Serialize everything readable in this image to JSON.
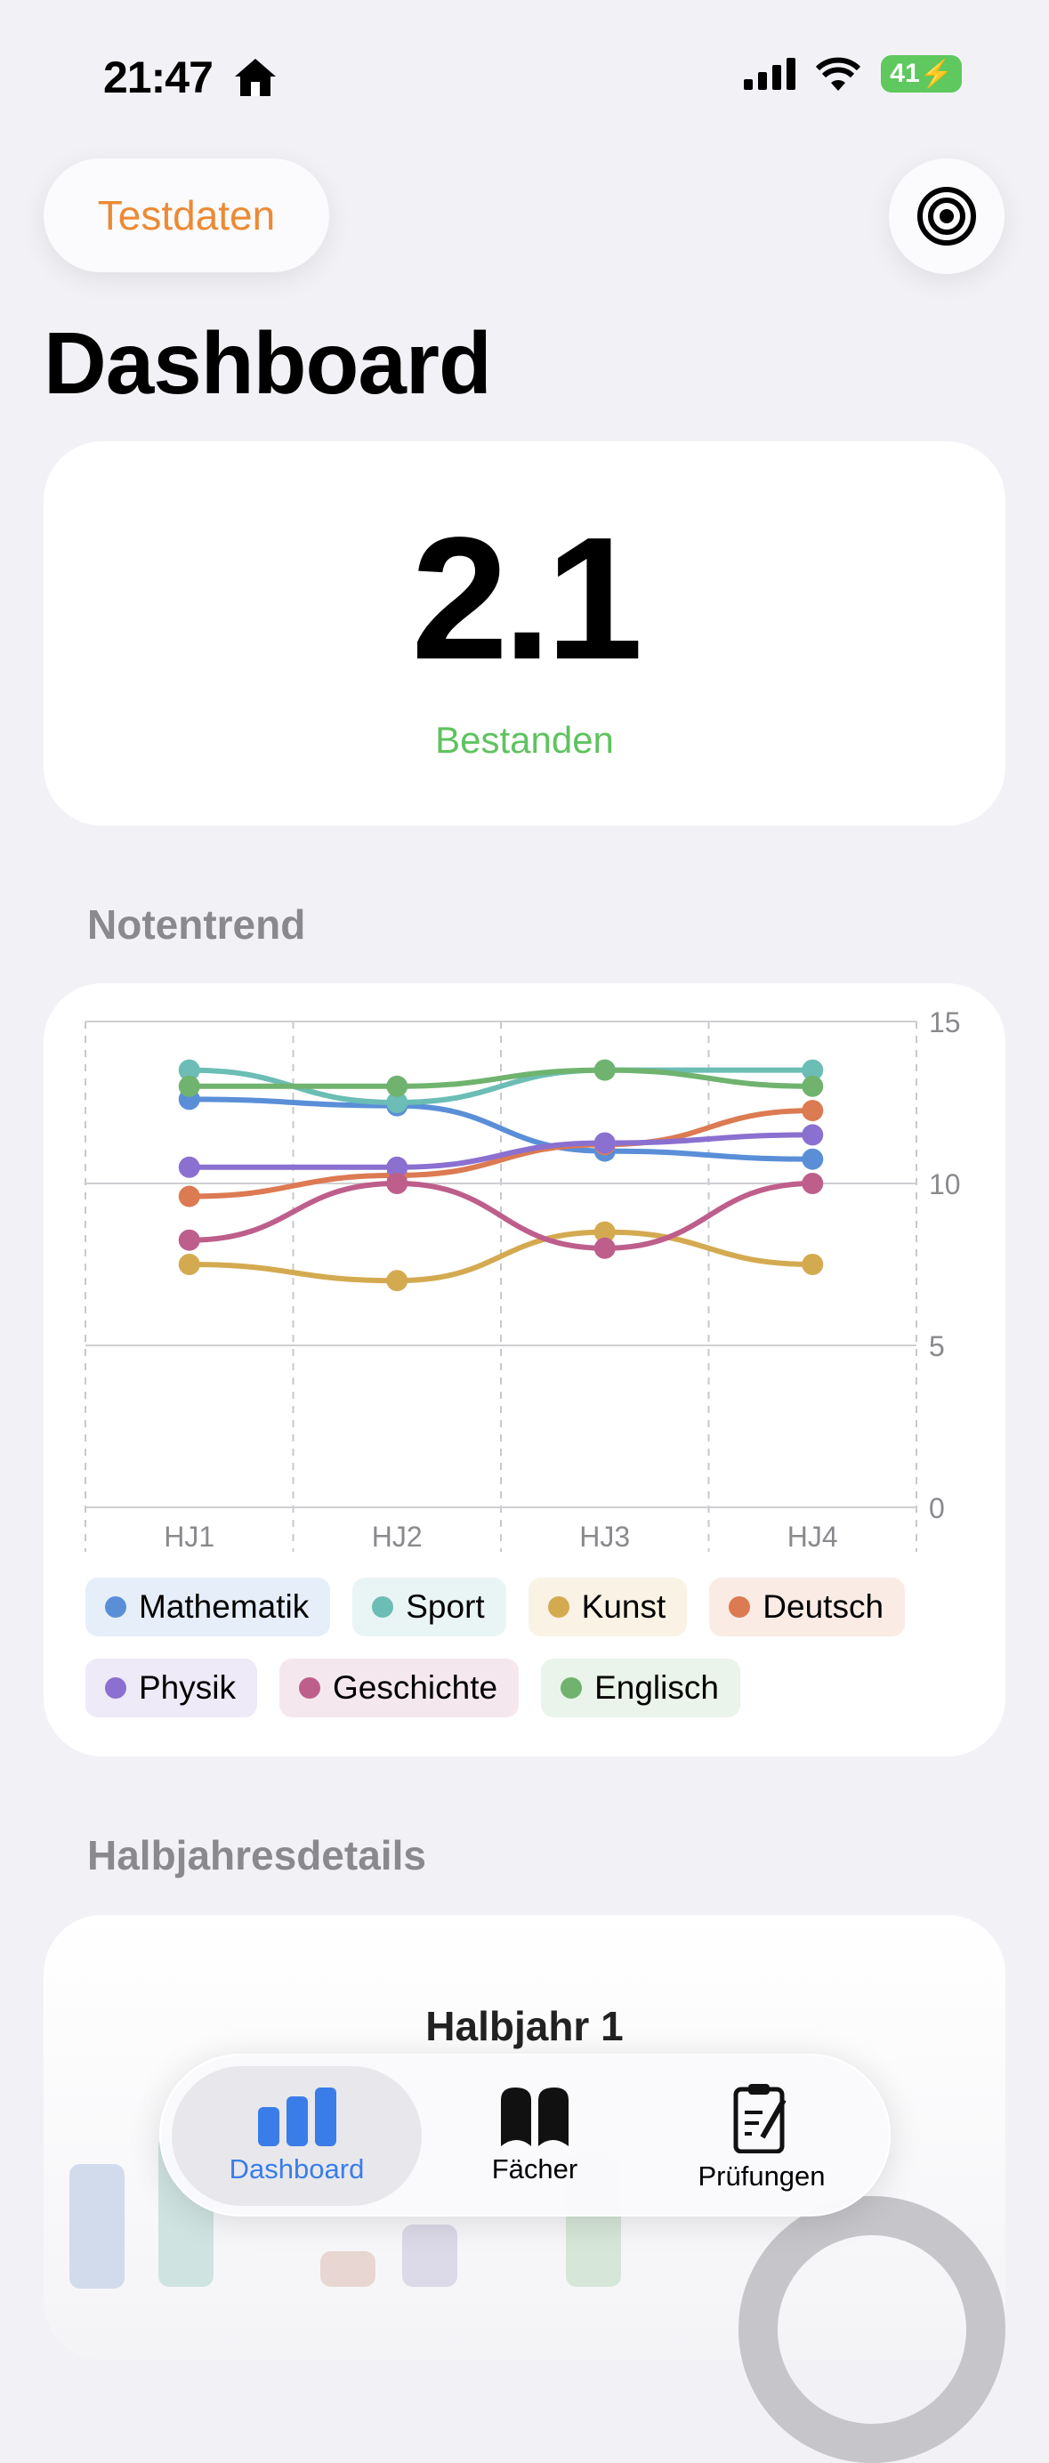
{
  "status_bar": {
    "time": "21:47",
    "battery": "41"
  },
  "header": {
    "test_data_button": "Testdaten",
    "title": "Dashboard"
  },
  "summary": {
    "average": "2.1",
    "status": "Bestanden",
    "status_color": "#5ec35e"
  },
  "trend_section": {
    "title": "Notentrend"
  },
  "chart_data": {
    "type": "line",
    "categories": [
      "HJ1",
      "HJ2",
      "HJ3",
      "HJ4"
    ],
    "ylim": [
      0,
      15
    ],
    "yticks": [
      "0",
      "5",
      "10",
      "15"
    ],
    "grid": true,
    "y_axis_position": "right",
    "legend_placement": "bottom",
    "series": [
      {
        "name": "Mathematik",
        "color": "#5a8fd8",
        "values": [
          12.6,
          12.4,
          11.0,
          10.75
        ]
      },
      {
        "name": "Sport",
        "color": "#6bbdb5",
        "values": [
          13.5,
          12.5,
          13.5,
          13.5
        ]
      },
      {
        "name": "Kunst",
        "color": "#d4aa50",
        "values": [
          7.5,
          7.0,
          8.5,
          7.5
        ]
      },
      {
        "name": "Deutsch",
        "color": "#dc7a52",
        "values": [
          9.6,
          10.25,
          11.2,
          12.25
        ]
      },
      {
        "name": "Physik",
        "color": "#8a70d0",
        "values": [
          10.5,
          10.5,
          11.25,
          11.5
        ]
      },
      {
        "name": "Geschichte",
        "color": "#be5e8a",
        "values": [
          8.25,
          10.0,
          8.0,
          10.0
        ]
      },
      {
        "name": "Englisch",
        "color": "#6fb36f",
        "values": [
          13.0,
          13.0,
          13.5,
          13.0
        ]
      }
    ]
  },
  "details_section": {
    "title": "Halbjahresdetails",
    "card_title": "Halbjahr 1"
  },
  "tabbar": {
    "tabs": [
      {
        "label": "Dashboard",
        "active": true
      },
      {
        "label": "Fächer"
      },
      {
        "label": "Prüfungen"
      }
    ],
    "accent": "#3a7de8"
  }
}
